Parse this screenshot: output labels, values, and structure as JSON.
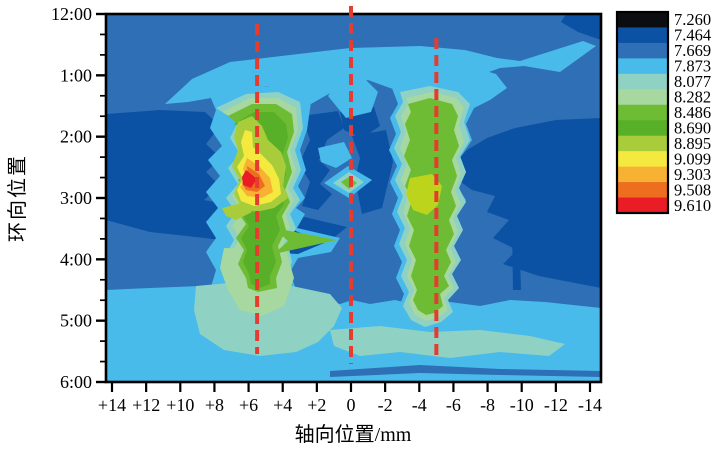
{
  "figure": {
    "background": "#ffffff",
    "description": "Filled contour map of measured values over weld axial position vs circumferential clock position"
  },
  "chart_data": {
    "type": "heatmap",
    "title": "",
    "xlabel": "轴向位置/mm",
    "ylabel": "环向位置",
    "x_ticks": [
      "+14",
      "+12",
      "+10",
      "+8",
      "+6",
      "+4",
      "+2",
      "0",
      "-2",
      "-4",
      "-6",
      "-8",
      "-10",
      "-12",
      "-14"
    ],
    "y_ticks": [
      "12:00",
      "1:00",
      "2:00",
      "3:00",
      "4:00",
      "5:00",
      "6:00"
    ],
    "y_minor_divisions": 3,
    "x_axis_direction": "values decrease left to right, +14 mm to -14 mm",
    "legend_position": "right",
    "levels": [
      {
        "value": "7.260",
        "color": "#0b0d10"
      },
      {
        "value": "7.464",
        "color": "#0c52a4"
      },
      {
        "value": "7.669",
        "color": "#2e6fb6"
      },
      {
        "value": "7.873",
        "color": "#49bbea"
      },
      {
        "value": "8.077",
        "color": "#8fd2c3"
      },
      {
        "value": "8.282",
        "color": "#a6d89f"
      },
      {
        "value": "8.486",
        "color": "#6ebc33"
      },
      {
        "value": "8.690",
        "color": "#58b029"
      },
      {
        "value": "8.895",
        "color": "#a9cd3a"
      },
      {
        "value": "9.099",
        "color": "#f4e93e"
      },
      {
        "value": "9.303",
        "color": "#f7b233"
      },
      {
        "value": "9.508",
        "color": "#ee6e1f"
      },
      {
        "value": "9.610",
        "color": "#ea1c25"
      }
    ],
    "background_level": "7.669",
    "reference_lines": {
      "orientation": "vertical",
      "style": "dashed",
      "color": "#e63c2f",
      "x_mm": [
        5.5,
        0,
        -5
      ]
    },
    "peaks": [
      {
        "x_mm": 6,
        "y_clock": "2:40-3:00",
        "max_level": "9.610"
      },
      {
        "x_mm": -5,
        "y_clock": "2:00-4:00",
        "max_level": "8.895"
      }
    ]
  },
  "colors": {
    "lime_patch": "#bcd41b",
    "axis": "#000000",
    "background": "#ffffff"
  }
}
